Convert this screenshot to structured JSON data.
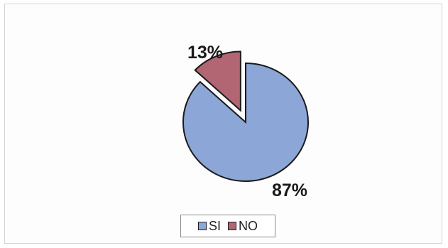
{
  "chart_data": {
    "type": "pie",
    "title": "",
    "slices": [
      {
        "label": "SI",
        "value": 87,
        "data_label": "87%",
        "color": "#8ca6d8"
      },
      {
        "label": "NO",
        "value": 13,
        "data_label": "13%",
        "color": "#b26673"
      }
    ],
    "exploded": "NO",
    "start": "top",
    "legend": {
      "position": "bottom",
      "entries": [
        "SI",
        "NO"
      ]
    }
  }
}
